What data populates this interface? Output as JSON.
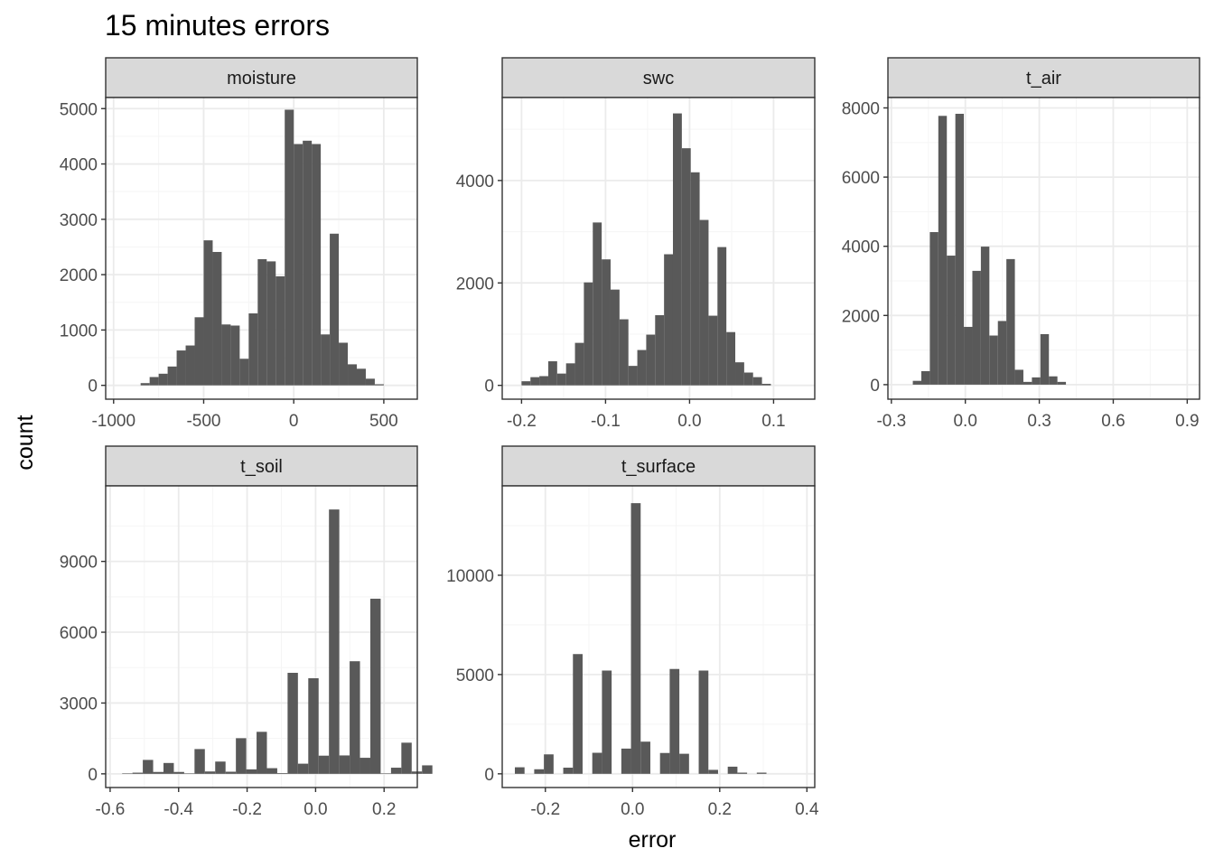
{
  "chart_data": {
    "type": "bar",
    "title": "15 minutes errors",
    "xlabel": "error",
    "ylabel": "count",
    "bar_color": "#595959",
    "strip_fill": "#d9d9d9",
    "grid_major_color": "#ebebeb",
    "grid_minor_color": "#f5f5f5",
    "grid": true,
    "panels": [
      {
        "name": "moisture",
        "xlim": [
          -1044,
          686
        ],
        "ylim": [
          -250,
          5200
        ],
        "xticks": [
          -1000,
          -500,
          0,
          500
        ],
        "xtick_labels": [
          "-1000",
          "-500",
          "0",
          "500"
        ],
        "yticks": [
          0,
          1000,
          2000,
          3000,
          4000,
          5000
        ],
        "ytick_labels": [
          "0",
          "1000",
          "2000",
          "3000",
          "4000",
          "5000"
        ],
        "bin_start": -850,
        "bin_width": 50,
        "counts": [
          40,
          150,
          210,
          340,
          630,
          720,
          1230,
          2620,
          2410,
          1100,
          1080,
          480,
          1300,
          2280,
          2240,
          1970,
          4980,
          4360,
          4420,
          4360,
          920,
          2740,
          770,
          380,
          300,
          120,
          20
        ]
      },
      {
        "name": "swc",
        "xlim": [
          -0.223,
          0.149
        ],
        "ylim": [
          -270,
          5620
        ],
        "xticks": [
          -0.2,
          -0.1,
          0.0,
          0.1
        ],
        "xtick_labels": [
          "-0.2",
          "-0.1",
          "0.0",
          "0.1"
        ],
        "yticks": [
          0,
          2000,
          4000
        ],
        "ytick_labels": [
          "0",
          "2000",
          "4000"
        ],
        "bin_start": -0.2,
        "bin_width": 0.0106,
        "counts": [
          80,
          160,
          180,
          470,
          230,
          430,
          830,
          2010,
          3180,
          2460,
          1870,
          1290,
          380,
          690,
          990,
          1370,
          2560,
          5310,
          4630,
          4160,
          3230,
          1360,
          2700,
          1040,
          450,
          250,
          160,
          30
        ]
      },
      {
        "name": "t_air",
        "xlim": [
          -0.314,
          0.95
        ],
        "ylim": [
          -420,
          8300
        ],
        "xticks": [
          -0.3,
          0.0,
          0.3,
          0.6,
          0.9
        ],
        "xtick_labels": [
          "-0.3",
          "0.0",
          "0.3",
          "0.6",
          "0.9"
        ],
        "yticks": [
          0,
          2000,
          4000,
          6000,
          8000
        ],
        "ytick_labels": [
          "0",
          "2000",
          "4000",
          "6000",
          "8000"
        ],
        "bin_start": -0.213,
        "bin_width": 0.0345,
        "counts": [
          110,
          390,
          4410,
          7770,
          3730,
          7830,
          1670,
          3290,
          3990,
          1420,
          1840,
          3630,
          430,
          80,
          210,
          1460,
          240,
          80
        ]
      },
      {
        "name": "t_soil",
        "xlim": [
          -0.613,
          0.297
        ],
        "ylim": [
          -580,
          12200
        ],
        "xticks": [
          -0.6,
          -0.4,
          -0.2,
          0.0,
          0.2
        ],
        "xtick_labels": [
          "-0.6",
          "-0.4",
          "-0.2",
          "0.0",
          "0.2"
        ],
        "yticks": [
          0,
          3000,
          6000,
          9000
        ],
        "ytick_labels": [
          "0",
          "3000",
          "6000",
          "9000"
        ],
        "bin_start": -0.565,
        "bin_width": 0.0302,
        "counts": [
          20,
          50,
          590,
          80,
          460,
          80,
          20,
          1050,
          100,
          520,
          90,
          1510,
          190,
          1780,
          240,
          30,
          4280,
          430,
          4050,
          770,
          11200,
          780,
          4770,
          680,
          7420,
          20,
          260,
          1320,
          100,
          360
        ]
      },
      {
        "name": "t_surface",
        "xlim": [
          -0.299,
          0.418
        ],
        "ylim": [
          -690,
          14500
        ],
        "xticks": [
          -0.2,
          0.0,
          0.2,
          0.4
        ],
        "xtick_labels": [
          "-0.2",
          "0.0",
          "0.2",
          "0.4"
        ],
        "yticks": [
          0,
          5000,
          10000
        ],
        "ytick_labels": [
          "0",
          "5000",
          "10000"
        ],
        "bin_start": -0.27,
        "bin_width": 0.0222,
        "counts": [
          330,
          0,
          230,
          980,
          0,
          310,
          6030,
          0,
          1060,
          5200,
          0,
          1270,
          13630,
          1620,
          0,
          1050,
          5280,
          1010,
          0,
          5200,
          200,
          0,
          360,
          60,
          0,
          60
        ]
      }
    ]
  }
}
